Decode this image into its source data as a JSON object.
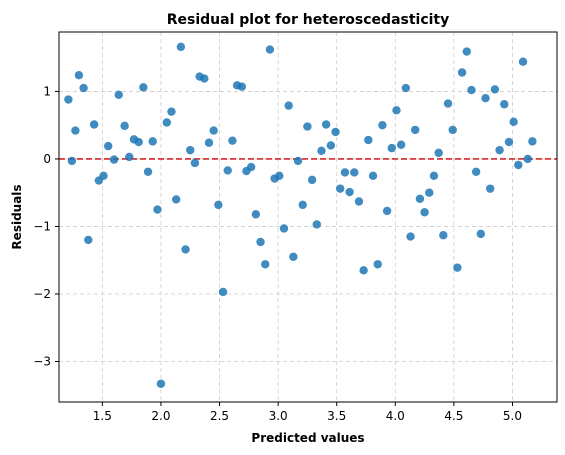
{
  "chart_data": {
    "type": "scatter",
    "title": "Residual plot for heteroscedasticity",
    "xlabel": "Predicted values",
    "ylabel": "Residuals",
    "xlim": [
      1.13,
      5.38
    ],
    "ylim": [
      -3.6,
      1.88
    ],
    "xticks": [
      1.5,
      2.0,
      2.5,
      3.0,
      3.5,
      4.0,
      4.5,
      5.0
    ],
    "xtick_labels": [
      "1.5",
      "2.0",
      "2.5",
      "3.0",
      "3.5",
      "4.0",
      "4.5",
      "5.0"
    ],
    "yticks": [
      -3,
      -2,
      -1,
      0,
      1
    ],
    "ytick_labels": [
      "−3",
      "−2",
      "−1",
      "0",
      "1"
    ],
    "grid": true,
    "reference_line": {
      "y": 0,
      "color": "#d62728",
      "style": "dashed"
    },
    "point_color": "#1f77b4",
    "points": [
      [
        1.21,
        0.88
      ],
      [
        1.24,
        -0.03
      ],
      [
        1.27,
        0.42
      ],
      [
        1.3,
        1.24
      ],
      [
        1.34,
        1.05
      ],
      [
        1.38,
        -1.2
      ],
      [
        1.43,
        0.51
      ],
      [
        1.47,
        -0.32
      ],
      [
        1.51,
        -0.25
      ],
      [
        1.55,
        0.19
      ],
      [
        1.6,
        -0.01
      ],
      [
        1.64,
        0.95
      ],
      [
        1.69,
        0.49
      ],
      [
        1.73,
        0.03
      ],
      [
        1.77,
        0.29
      ],
      [
        1.81,
        0.25
      ],
      [
        1.85,
        1.06
      ],
      [
        1.89,
        -0.19
      ],
      [
        1.93,
        0.26
      ],
      [
        1.97,
        -0.75
      ],
      [
        2.0,
        -3.33
      ],
      [
        2.05,
        0.54
      ],
      [
        2.09,
        0.7
      ],
      [
        2.13,
        -0.6
      ],
      [
        2.17,
        1.66
      ],
      [
        2.21,
        -1.34
      ],
      [
        2.25,
        0.13
      ],
      [
        2.29,
        -0.06
      ],
      [
        2.33,
        1.22
      ],
      [
        2.37,
        1.19
      ],
      [
        2.41,
        0.24
      ],
      [
        2.45,
        0.42
      ],
      [
        2.49,
        -0.68
      ],
      [
        2.53,
        -1.97
      ],
      [
        2.57,
        -0.17
      ],
      [
        2.61,
        0.27
      ],
      [
        2.65,
        1.09
      ],
      [
        2.69,
        1.07
      ],
      [
        2.73,
        -0.18
      ],
      [
        2.77,
        -0.12
      ],
      [
        2.81,
        -0.82
      ],
      [
        2.85,
        -1.23
      ],
      [
        2.89,
        -1.56
      ],
      [
        2.93,
        1.62
      ],
      [
        2.97,
        -0.29
      ],
      [
        3.01,
        -0.25
      ],
      [
        3.05,
        -1.03
      ],
      [
        3.09,
        0.79
      ],
      [
        3.13,
        -1.45
      ],
      [
        3.17,
        -0.03
      ],
      [
        3.21,
        -0.68
      ],
      [
        3.25,
        0.48
      ],
      [
        3.29,
        -0.31
      ],
      [
        3.33,
        -0.97
      ],
      [
        3.37,
        0.12
      ],
      [
        3.41,
        0.51
      ],
      [
        3.45,
        0.2
      ],
      [
        3.49,
        0.4
      ],
      [
        3.53,
        -0.44
      ],
      [
        3.57,
        -0.2
      ],
      [
        3.61,
        -0.49
      ],
      [
        3.65,
        -0.2
      ],
      [
        3.69,
        -0.63
      ],
      [
        3.73,
        -1.65
      ],
      [
        3.77,
        0.28
      ],
      [
        3.81,
        -0.25
      ],
      [
        3.85,
        -1.56
      ],
      [
        3.89,
        0.5
      ],
      [
        3.93,
        -0.77
      ],
      [
        3.97,
        0.16
      ],
      [
        4.01,
        0.72
      ],
      [
        4.05,
        0.21
      ],
      [
        4.09,
        1.05
      ],
      [
        4.13,
        -1.15
      ],
      [
        4.17,
        0.43
      ],
      [
        4.21,
        -0.59
      ],
      [
        4.25,
        -0.79
      ],
      [
        4.29,
        -0.5
      ],
      [
        4.33,
        -0.25
      ],
      [
        4.37,
        0.09
      ],
      [
        4.41,
        -1.13
      ],
      [
        4.45,
        0.82
      ],
      [
        4.49,
        0.43
      ],
      [
        4.53,
        -1.61
      ],
      [
        4.57,
        1.28
      ],
      [
        4.61,
        1.59
      ],
      [
        4.65,
        1.02
      ],
      [
        4.69,
        -0.19
      ],
      [
        4.73,
        -1.11
      ],
      [
        4.77,
        0.9
      ],
      [
        4.81,
        -0.44
      ],
      [
        4.85,
        1.03
      ],
      [
        4.89,
        0.13
      ],
      [
        4.93,
        0.81
      ],
      [
        4.97,
        0.25
      ],
      [
        5.01,
        0.55
      ],
      [
        5.05,
        -0.09
      ],
      [
        5.09,
        1.44
      ],
      [
        5.13,
        0.0
      ],
      [
        5.17,
        0.26
      ]
    ]
  }
}
